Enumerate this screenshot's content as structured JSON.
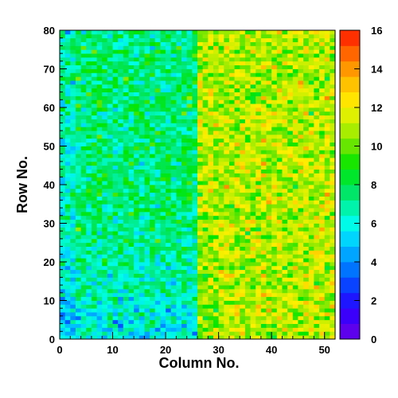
{
  "chart_data": {
    "type": "heatmap",
    "xlabel": "Column No.",
    "ylabel": "Row No.",
    "xlim": [
      0,
      52
    ],
    "ylim": [
      0,
      80
    ],
    "x_bins": 52,
    "y_bins": 80,
    "x_ticks": [
      "0",
      "10",
      "20",
      "30",
      "40",
      "50"
    ],
    "y_ticks": [
      "0",
      "10",
      "20",
      "30",
      "40",
      "50",
      "60",
      "70",
      "80"
    ],
    "zlim": [
      0,
      16
    ],
    "z_ticks": [
      "0",
      "2",
      "4",
      "6",
      "8",
      "10",
      "12",
      "14",
      "16"
    ],
    "colorbar": "right",
    "grid": false,
    "value_trend": {
      "description_of_values": "cell counts per (column,row) pixel",
      "left_half_typical_value": 7.5,
      "right_half_typical_value": 11,
      "lower_left_region_typical_value": 6,
      "boundary_column": 26
    }
  }
}
